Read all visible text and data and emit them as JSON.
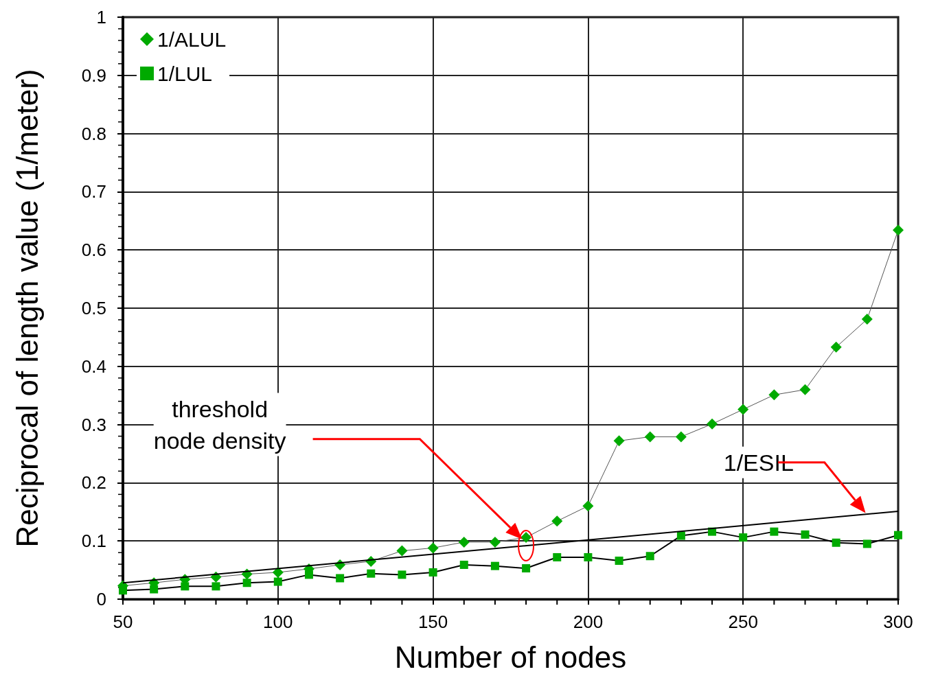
{
  "chart_data": {
    "type": "line",
    "xlabel": "Number of nodes",
    "ylabel": "Reciprocal of length value (1/meter)",
    "x": [
      50,
      60,
      70,
      80,
      90,
      100,
      110,
      120,
      130,
      140,
      150,
      160,
      170,
      180,
      190,
      200,
      210,
      220,
      230,
      240,
      250,
      260,
      270,
      280,
      290,
      300
    ],
    "series": [
      {
        "name": "1/ALUL",
        "color": "#00aa00",
        "marker": "diamond",
        "values": [
          0.023,
          0.028,
          0.034,
          0.038,
          0.043,
          0.046,
          0.052,
          0.059,
          0.065,
          0.083,
          0.088,
          0.098,
          0.098,
          0.106,
          0.134,
          0.16,
          0.272,
          0.279,
          0.279,
          0.301,
          0.326,
          0.351,
          0.36,
          0.433,
          0.481,
          0.634
        ]
      },
      {
        "name": "1/LUL",
        "color": "#00aa00",
        "marker": "square",
        "values": [
          0.015,
          0.017,
          0.022,
          0.022,
          0.028,
          0.03,
          0.042,
          0.036,
          0.044,
          0.042,
          0.046,
          0.059,
          0.057,
          0.053,
          0.072,
          0.072,
          0.066,
          0.074,
          0.109,
          0.116,
          0.106,
          0.116,
          0.111,
          0.097,
          0.095,
          0.11
        ]
      },
      {
        "color": "#000000",
        "marker": "none",
        "x": [
          50,
          300
        ],
        "values": [
          0.028,
          0.151
        ]
      }
    ],
    "xlim": [
      50,
      300
    ],
    "xticks": [
      50,
      100,
      150,
      200,
      250,
      300
    ],
    "ylim": [
      0,
      1
    ],
    "yticks": [
      0,
      0.1,
      0.2,
      0.3,
      0.4,
      0.5,
      0.6,
      0.7,
      0.8,
      0.9,
      1
    ],
    "grid": true,
    "legend": "top left",
    "annotations": [
      "threshold\nnode density",
      "1/ESIL"
    ]
  }
}
